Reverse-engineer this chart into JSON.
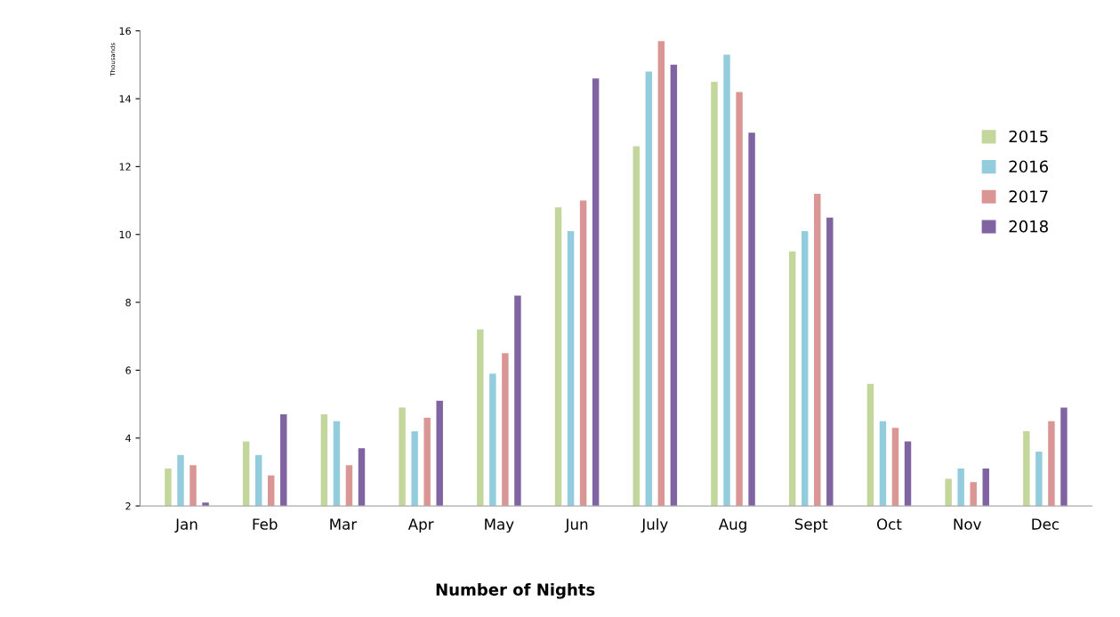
{
  "chart_data": {
    "type": "bar",
    "xlabel": "Number of Nights",
    "ylabel": "Thousands",
    "categories": [
      "Jan",
      "Feb",
      "Mar",
      "Apr",
      "May",
      "Jun",
      "July",
      "Aug",
      "Sept",
      "Oct",
      "Nov",
      "Dec"
    ],
    "series": [
      {
        "name": "2015",
        "color": "#c3d69b",
        "values": [
          3.1,
          3.9,
          4.7,
          4.9,
          7.2,
          10.8,
          12.6,
          14.5,
          9.5,
          5.6,
          2.8,
          4.2
        ]
      },
      {
        "name": "2016",
        "color": "#93cddd",
        "values": [
          3.5,
          3.5,
          4.5,
          4.2,
          5.9,
          10.1,
          14.8,
          15.3,
          10.1,
          4.5,
          3.1,
          3.6
        ]
      },
      {
        "name": "2017",
        "color": "#d99694",
        "values": [
          3.2,
          2.9,
          3.2,
          4.6,
          6.5,
          11.0,
          15.7,
          14.2,
          11.2,
          4.3,
          2.7,
          4.5
        ]
      },
      {
        "name": "2018",
        "color": "#8064a2",
        "values": [
          2.1,
          4.7,
          3.7,
          5.1,
          8.2,
          14.6,
          15.0,
          13.0,
          10.5,
          3.9,
          3.1,
          4.9
        ]
      }
    ],
    "ylim": [
      2,
      16
    ],
    "yticks": [
      2,
      4,
      6,
      8,
      10,
      12,
      14,
      16
    ],
    "grid": false,
    "legend": "right"
  }
}
